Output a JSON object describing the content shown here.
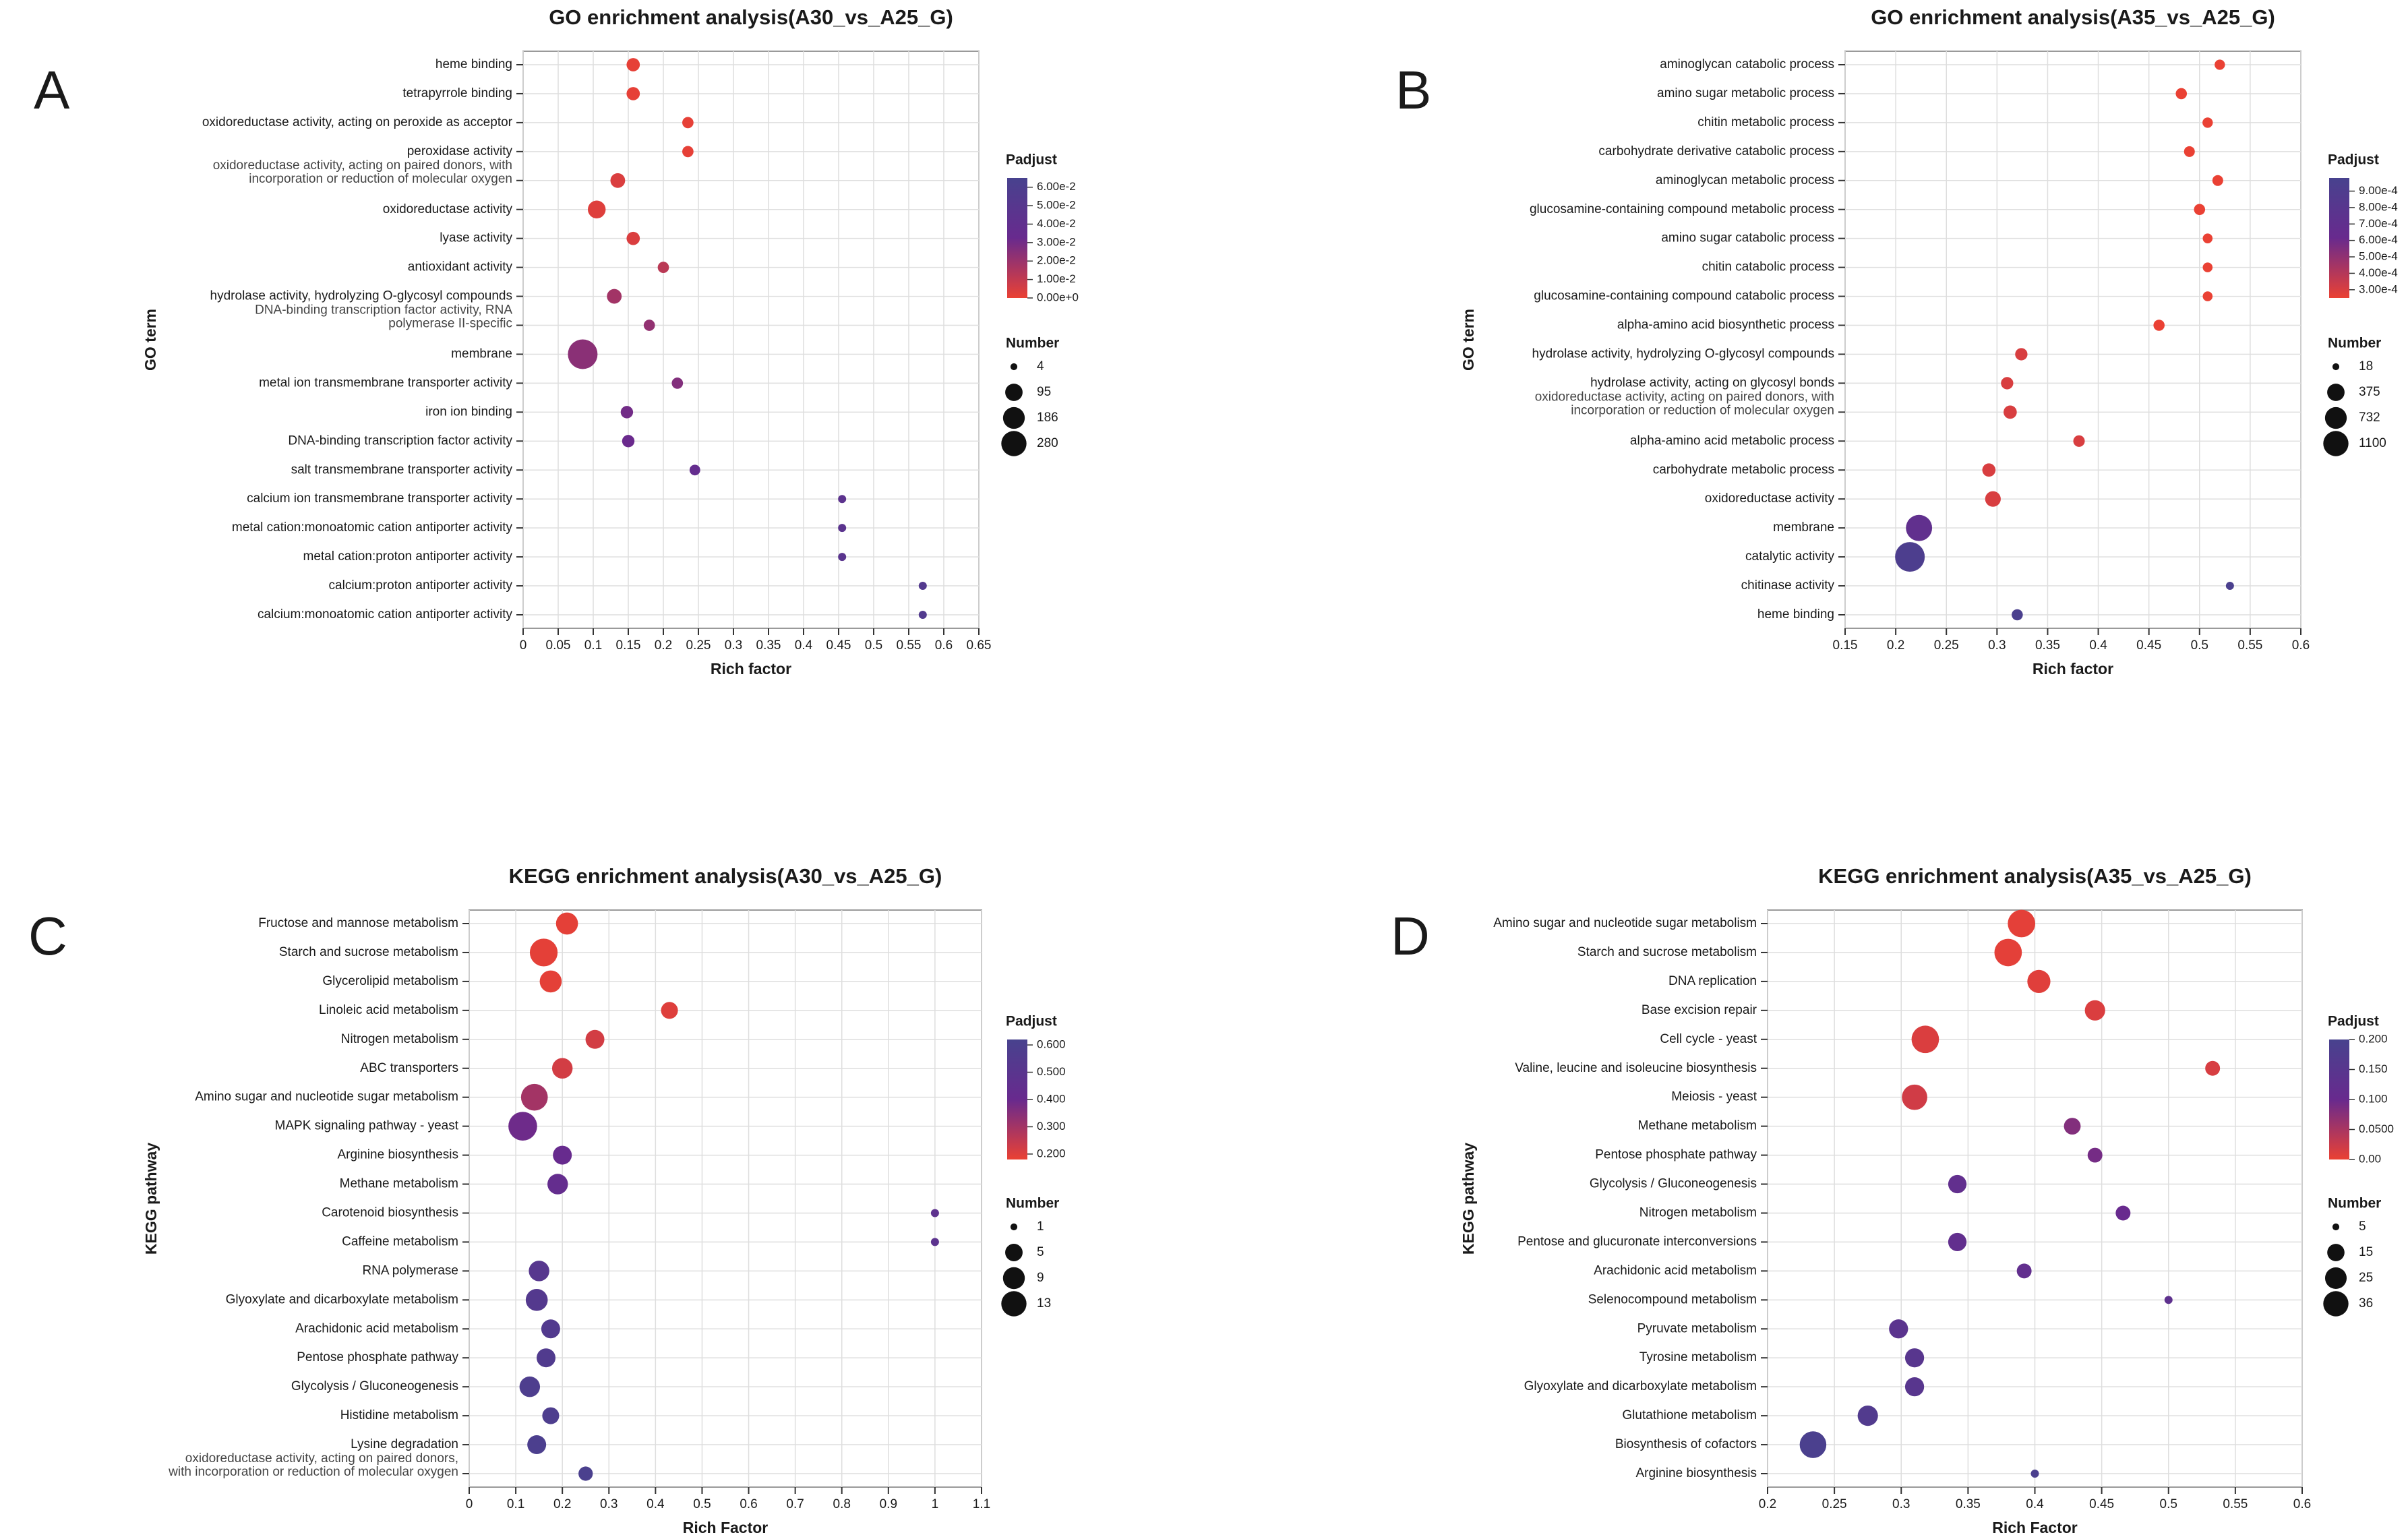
{
  "chart_data": [
    {
      "panel_letter": "A",
      "type": "scatter",
      "title": "GO enrichment analysis(A30_vs_A25_G)",
      "xlabel": "Rich factor",
      "ylabel": "GO term",
      "xlim": [
        0,
        0.65
      ],
      "xticks": [
        0,
        0.05,
        0.1,
        0.15,
        0.2,
        0.25,
        0.3,
        0.35,
        0.4,
        0.45,
        0.5,
        0.55,
        0.6,
        0.65
      ],
      "xtick_labels": [
        "0",
        "0.05",
        "0.1",
        "0.15",
        "0.2",
        "0.25",
        "0.3",
        "0.35",
        "0.4",
        "0.45",
        "0.5",
        "0.55",
        "0.6",
        "0.65"
      ],
      "grid": true,
      "colorbar_title": "Padjust",
      "color_range": [
        0,
        0.065
      ],
      "colorbar_ticks": [
        0.06,
        0.05,
        0.04,
        0.03,
        0.02,
        0.01,
        0.0
      ],
      "colorbar_labels": [
        "6.00e-2",
        "5.00e-2",
        "4.00e-2",
        "3.00e-2",
        "2.00e-2",
        "1.00e-2",
        "0.00e+0"
      ],
      "size_title": "Number",
      "size_range": [
        4,
        280
      ],
      "size_legend": [
        4,
        95,
        186,
        280
      ],
      "size_labels": [
        "4",
        "95",
        "186",
        "280"
      ],
      "categories": [
        "heme binding",
        "tetrapyrrole binding",
        "oxidoreductase activity, acting on peroxide as acceptor",
        "peroxidase activity",
        "oxidoreductase activity, acting on paired donors, with\nincorporation or reduction of molecular oxygen",
        "oxidoreductase activity",
        "lyase activity",
        "antioxidant activity",
        "hydrolase activity, hydrolyzing O-glycosyl compounds",
        "DNA-binding transcription factor activity, RNA\npolymerase II-specific",
        "membrane",
        "metal ion transmembrane transporter activity",
        "iron ion binding",
        "DNA-binding transcription factor activity",
        "salt transmembrane transporter activity",
        "calcium ion transmembrane transporter activity",
        "metal cation:monoatomic cation antiporter activity",
        "metal cation:proton antiporter activity",
        "calcium:proton antiporter activity",
        "calcium:monoatomic cation antiporter activity"
      ],
      "x": [
        0.157,
        0.157,
        0.235,
        0.235,
        0.135,
        0.105,
        0.157,
        0.2,
        0.13,
        0.18,
        0.085,
        0.22,
        0.148,
        0.15,
        0.245,
        0.455,
        0.455,
        0.455,
        0.57,
        0.57
      ],
      "padjust": [
        0.001,
        0.001,
        0.001,
        0.001,
        0.004,
        0.003,
        0.004,
        0.012,
        0.018,
        0.022,
        0.024,
        0.026,
        0.03,
        0.032,
        0.037,
        0.045,
        0.046,
        0.047,
        0.054,
        0.055
      ],
      "number": [
        20,
        20,
        10,
        10,
        30,
        60,
        20,
        10,
        30,
        10,
        280,
        10,
        15,
        15,
        8,
        4,
        4,
        4,
        4,
        4
      ]
    },
    {
      "panel_letter": "B",
      "type": "scatter",
      "title": "GO enrichment analysis(A35_vs_A25_G)",
      "xlabel": "Rich factor",
      "ylabel": "GO term",
      "xlim": [
        0.15,
        0.6
      ],
      "xticks": [
        0.15,
        0.2,
        0.25,
        0.3,
        0.35,
        0.4,
        0.45,
        0.5,
        0.55,
        0.6
      ],
      "xtick_labels": [
        "0.15",
        "0.2",
        "0.25",
        "0.3",
        "0.35",
        "0.4",
        "0.45",
        "0.5",
        "0.55",
        "0.6"
      ],
      "grid": true,
      "colorbar_title": "Padjust",
      "color_range": [
        0.00025,
        0.00098
      ],
      "colorbar_ticks": [
        0.0009,
        0.0008,
        0.0007,
        0.0006,
        0.0005,
        0.0004,
        0.0003
      ],
      "colorbar_labels": [
        "9.00e-4",
        "8.00e-4",
        "7.00e-4",
        "6.00e-4",
        "5.00e-4",
        "4.00e-4",
        "3.00e-4"
      ],
      "size_title": "Number",
      "size_range": [
        18,
        1100
      ],
      "size_legend": [
        18,
        375,
        732,
        1100
      ],
      "size_labels": [
        "18",
        "375",
        "732",
        "1100"
      ],
      "categories": [
        "aminoglycan catabolic process",
        "amino sugar metabolic process",
        "chitin metabolic process",
        "carbohydrate derivative catabolic process",
        "aminoglycan metabolic process",
        "glucosamine-containing compound metabolic process",
        "amino sugar catabolic process",
        "chitin catabolic process",
        "glucosamine-containing compound catabolic process",
        "alpha-amino acid biosynthetic process",
        "hydrolase activity, hydrolyzing O-glycosyl compounds",
        "hydrolase activity, acting on glycosyl bonds",
        "oxidoreductase activity, acting on paired donors, with\nincorporation or reduction of molecular oxygen",
        "alpha-amino acid metabolic process",
        "carbohydrate metabolic process",
        "oxidoreductase activity",
        "membrane",
        "catalytic activity",
        "chitinase activity",
        "heme binding"
      ],
      "x": [
        0.52,
        0.482,
        0.508,
        0.49,
        0.518,
        0.5,
        0.508,
        0.508,
        0.508,
        0.46,
        0.324,
        0.31,
        0.313,
        0.381,
        0.292,
        0.296,
        0.223,
        0.214,
        0.53,
        0.32
      ],
      "padjust": [
        0.00025,
        0.00025,
        0.00025,
        0.00025,
        0.00025,
        0.00025,
        0.00025,
        0.00025,
        0.00025,
        0.00025,
        0.0003,
        0.0003,
        0.0003,
        0.0003,
        0.0003,
        0.0003,
        0.0007,
        0.00092,
        0.00095,
        0.00095
      ],
      "number": [
        30,
        40,
        30,
        35,
        35,
        40,
        25,
        25,
        25,
        40,
        60,
        60,
        80,
        45,
        80,
        150,
        780,
        1100,
        18,
        40
      ]
    },
    {
      "panel_letter": "C",
      "type": "scatter",
      "title": "KEGG enrichment analysis(A30_vs_A25_G)",
      "xlabel": "Rich Factor",
      "ylabel": "KEGG pathway",
      "xlim": [
        0,
        1.1
      ],
      "xticks": [
        0,
        0.1,
        0.2,
        0.3,
        0.4,
        0.5,
        0.6,
        0.7,
        0.8,
        0.9,
        1,
        1.1
      ],
      "xtick_labels": [
        "0",
        "0.1",
        "0.2",
        "0.3",
        "0.4",
        "0.5",
        "0.6",
        "0.7",
        "0.8",
        "0.9",
        "1",
        "1.1"
      ],
      "grid": true,
      "colorbar_title": "Padjust",
      "color_range": [
        0.18,
        0.62
      ],
      "colorbar_ticks": [
        0.6,
        0.5,
        0.4,
        0.3,
        0.2
      ],
      "colorbar_labels": [
        "0.600",
        "0.500",
        "0.400",
        "0.300",
        "0.200"
      ],
      "size_title": "Number",
      "size_range": [
        1,
        13
      ],
      "size_legend": [
        1,
        5,
        9,
        13
      ],
      "size_labels": [
        "1",
        "5",
        "9",
        "13"
      ],
      "categories": [
        "Fructose and mannose metabolism",
        "Starch and sucrose metabolism",
        "Glycerolipid metabolism",
        "Linoleic acid metabolism",
        "Nitrogen metabolism",
        "ABC transporters",
        "Amino sugar and nucleotide sugar metabolism",
        "MAPK signaling pathway - yeast",
        "Arginine biosynthesis",
        "Methane metabolism",
        "Carotenoid biosynthesis",
        "Caffeine metabolism",
        "RNA polymerase",
        "Glyoxylate and dicarboxylate metabolism",
        "Arachidonic acid metabolism",
        "Pentose phosphate pathway",
        "Glycolysis / Gluconeogenesis",
        "Histidine metabolism",
        "Lysine degradation",
        "oxidoreductase activity, acting on paired donors,\nwith incorporation or reduction of molecular oxygen"
      ],
      "x": [
        0.21,
        0.16,
        0.175,
        0.43,
        0.27,
        0.2,
        0.14,
        0.115,
        0.2,
        0.19,
        1.0,
        1.0,
        0.15,
        0.145,
        0.175,
        0.165,
        0.13,
        0.175,
        0.145,
        0.25
      ],
      "padjust": [
        0.19,
        0.19,
        0.19,
        0.2,
        0.22,
        0.22,
        0.3,
        0.39,
        0.41,
        0.43,
        0.47,
        0.48,
        0.52,
        0.54,
        0.55,
        0.56,
        0.58,
        0.58,
        0.59,
        0.6
      ],
      "number": [
        6,
        11,
        6,
        3,
        4,
        5,
        10,
        12,
        4,
        5,
        1,
        1,
        5,
        6,
        4,
        4,
        5,
        3,
        4,
        2
      ]
    },
    {
      "panel_letter": "D",
      "type": "scatter",
      "title": "KEGG enrichment analysis(A35_vs_A25_G)",
      "xlabel": "Rich Factor",
      "ylabel": "KEGG pathway",
      "xlim": [
        0.2,
        0.6
      ],
      "xticks": [
        0.2,
        0.25,
        0.3,
        0.35,
        0.4,
        0.45,
        0.5,
        0.55,
        0.6
      ],
      "xtick_labels": [
        "0.2",
        "0.25",
        "0.3",
        "0.35",
        "0.4",
        "0.45",
        "0.5",
        "0.55",
        "0.6"
      ],
      "grid": true,
      "colorbar_title": "Padjust",
      "color_range": [
        0,
        0.2
      ],
      "colorbar_ticks": [
        0.2,
        0.15,
        0.1,
        0.05,
        0
      ],
      "colorbar_labels": [
        "0.200",
        "0.150",
        "0.100",
        "0.0500",
        "0.00"
      ],
      "size_title": "Number",
      "size_range": [
        5,
        36
      ],
      "size_legend": [
        5,
        15,
        25,
        36
      ],
      "size_labels": [
        "5",
        "15",
        "25",
        "36"
      ],
      "categories": [
        "Amino sugar and nucleotide sugar metabolism",
        "Starch and sucrose metabolism",
        "DNA replication",
        "Base excision repair",
        "Cell cycle - yeast",
        "Valine, leucine and isoleucine biosynthesis",
        "Meiosis - yeast",
        "Methane metabolism",
        "Pentose phosphate pathway",
        "Glycolysis / Gluconeogenesis",
        "Nitrogen metabolism",
        "Pentose and glucuronate interconversions",
        "Arachidonic acid metabolism",
        "Selenocompound metabolism",
        "Pyruvate metabolism",
        "Tyrosine metabolism",
        "Glyoxylate and dicarboxylate metabolism",
        "Glutathione metabolism",
        "Biosynthesis of cofactors",
        "Arginine biosynthesis"
      ],
      "x": [
        0.39,
        0.38,
        0.403,
        0.445,
        0.318,
        0.533,
        0.31,
        0.428,
        0.445,
        0.342,
        0.466,
        0.342,
        0.392,
        0.5,
        0.298,
        0.31,
        0.31,
        0.275,
        0.234,
        0.4
      ],
      "padjust": [
        0.005,
        0.005,
        0.008,
        0.012,
        0.012,
        0.015,
        0.02,
        0.08,
        0.09,
        0.12,
        0.1,
        0.12,
        0.12,
        0.13,
        0.14,
        0.15,
        0.15,
        0.17,
        0.19,
        0.19
      ],
      "number": [
        30,
        30,
        20,
        15,
        30,
        8,
        25,
        10,
        8,
        12,
        8,
        12,
        8,
        5,
        13,
        13,
        13,
        15,
        28,
        5
      ]
    }
  ]
}
